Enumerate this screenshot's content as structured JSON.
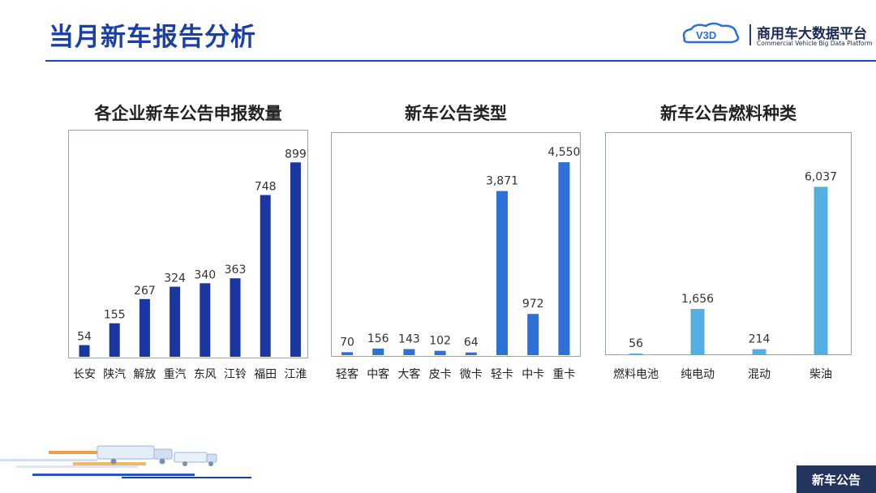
{
  "header": {
    "title": "当月新车报告分析",
    "brand_name": "商用车大数据平台",
    "brand_en": "Commercial Vehicle Big Data Platform",
    "logo_text": "V3D"
  },
  "footer": {
    "tag": "新车公告"
  },
  "colors": {
    "dark_blue": "#1a36a0",
    "mid_blue": "#2f6fd8",
    "light_blue": "#55aee0"
  },
  "chart_data": [
    {
      "type": "bar",
      "title": "各企业新车公告申报数量",
      "categories": [
        "长安",
        "陕汽",
        "解放",
        "重汽",
        "东风",
        "江铃",
        "福田",
        "江淮"
      ],
      "values": [
        54,
        155,
        267,
        324,
        340,
        363,
        748,
        899
      ],
      "labels": [
        "54",
        "155",
        "267",
        "324",
        "340",
        "363",
        "748",
        "899"
      ],
      "ylim": [
        0,
        960
      ],
      "color": "#1a36a0"
    },
    {
      "type": "bar",
      "title": "新车公告类型",
      "categories": [
        "轻客",
        "中客",
        "大客",
        "皮卡",
        "微卡",
        "轻卡",
        "中卡",
        "重卡"
      ],
      "values": [
        70,
        156,
        143,
        102,
        64,
        3871,
        972,
        4550
      ],
      "labels": [
        "70",
        "156",
        "143",
        "102",
        "64",
        "3,871",
        "972",
        "4,550"
      ],
      "ylim": [
        0,
        4800
      ],
      "color": "#2f6fd8"
    },
    {
      "type": "bar",
      "title": "新车公告燃料种类",
      "categories": [
        "燃料电池",
        "纯电动",
        "混动",
        "柴油"
      ],
      "values": [
        56,
        1656,
        214,
        6037
      ],
      "labels": [
        "56",
        "1,656",
        "214",
        "6,037"
      ],
      "ylim": [
        0,
        7300
      ],
      "color": "#55aee0"
    }
  ]
}
